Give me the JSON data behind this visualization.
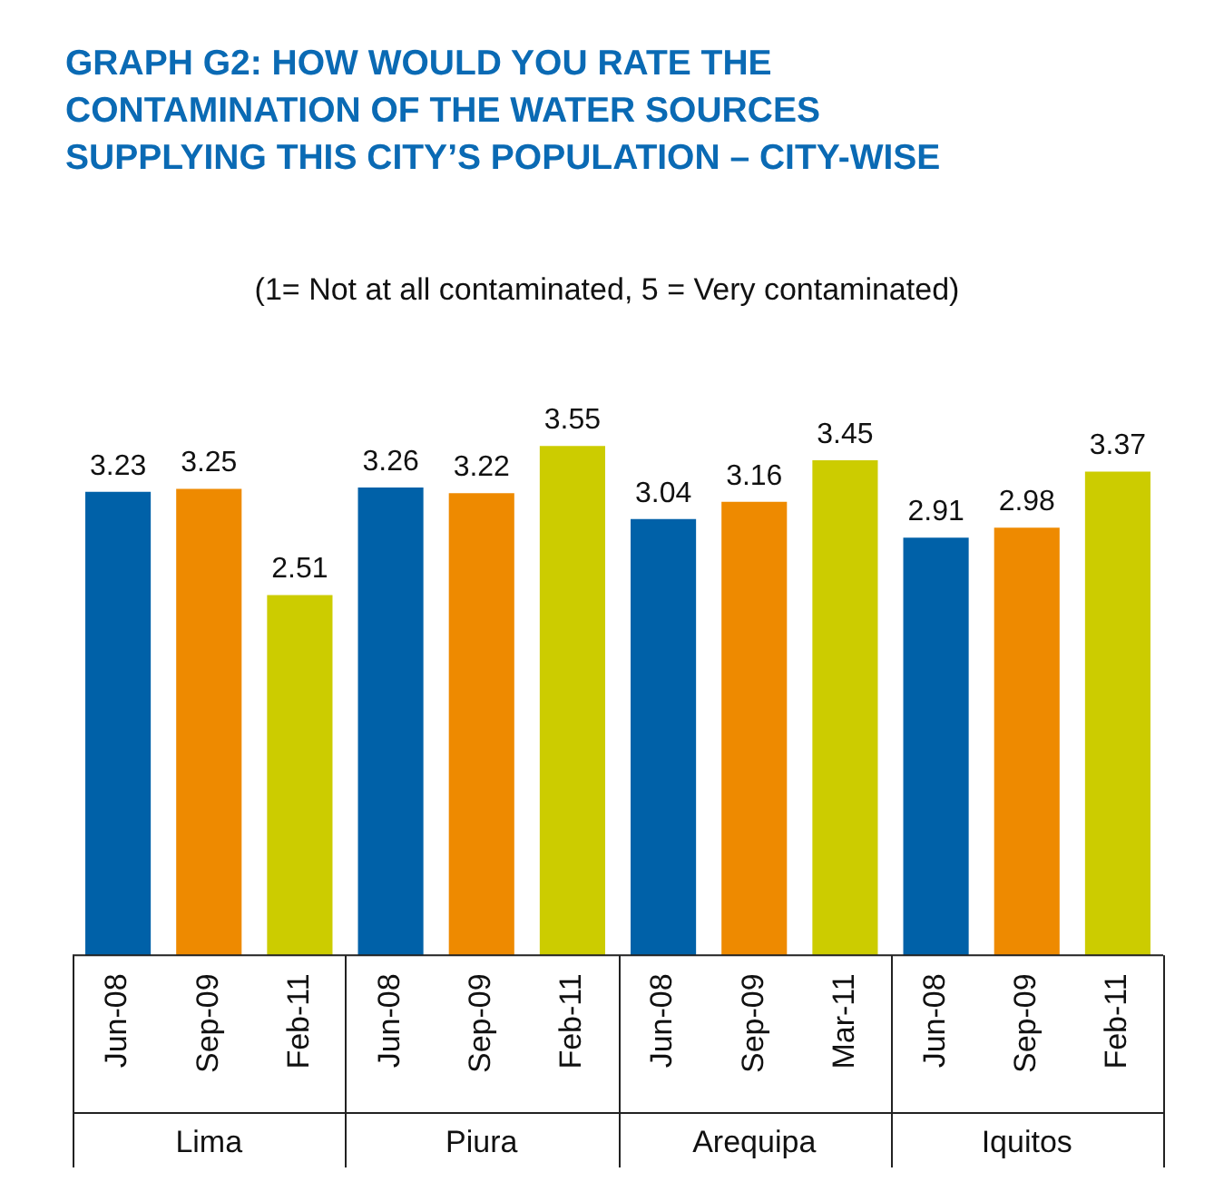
{
  "chart_data": {
    "type": "bar",
    "title": "GRAPH G2: HOW WOULD YOU RATE THE CONTAMINATION OF THE WATER SOURCES SUPPLYING THIS CITY’S POPULATION – CITY-WISE",
    "subtitle": "(1= Not at all contaminated, 5 = Very contaminated)",
    "categories": [
      "Jun-08",
      "Sep-09",
      "Feb-11",
      "Jun-08",
      "Sep-09",
      "Feb-11",
      "Jun-08",
      "Sep-09",
      "Mar-11",
      "Jun-08",
      "Sep-09",
      "Feb-11"
    ],
    "values": [
      3.23,
      3.25,
      2.51,
      3.26,
      3.22,
      3.55,
      3.04,
      3.16,
      3.45,
      2.91,
      2.98,
      3.37
    ],
    "colors": [
      "#0061a8",
      "#ee8a00",
      "#cccc00",
      "#0061a8",
      "#ee8a00",
      "#cccc00",
      "#0061a8",
      "#ee8a00",
      "#cccc00",
      "#0061a8",
      "#ee8a00",
      "#cccc00"
    ],
    "data_labels": true,
    "legend": false,
    "annotations": [
      "Lima",
      "Piura",
      "Arequipa",
      "Iquitos"
    ]
  }
}
